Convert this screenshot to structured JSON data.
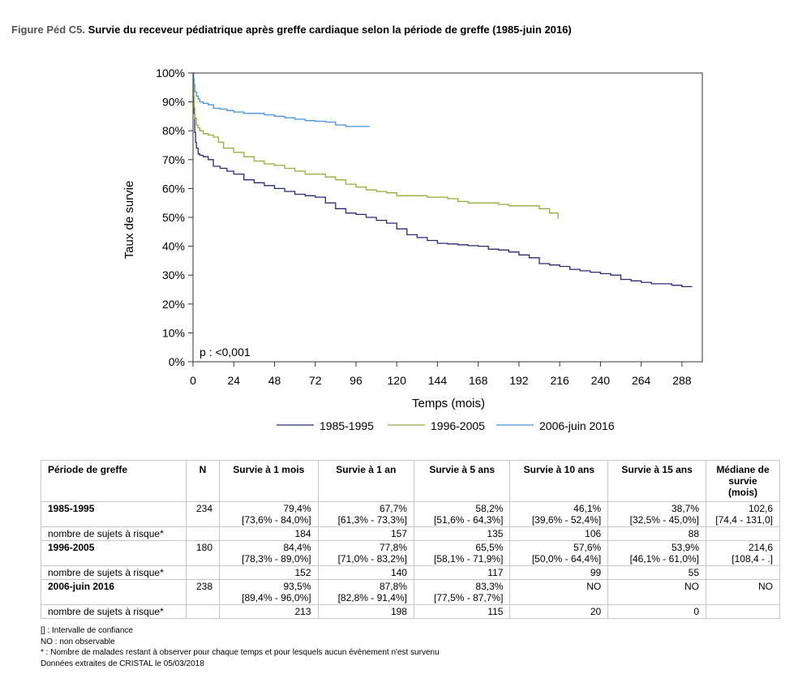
{
  "figure": {
    "label": "Figure Péd C5.",
    "title": "Survie du receveur pédiatrique après greffe cardiaque selon la période de greffe (1985-juin 2016)"
  },
  "chart_data": {
    "type": "line",
    "xlabel": "Temps (mois)",
    "ylabel": "Taux de survie",
    "xlim": [
      0,
      300
    ],
    "ylim": [
      0,
      100
    ],
    "x_ticks": [
      0,
      24,
      48,
      72,
      96,
      120,
      144,
      168,
      192,
      216,
      240,
      264,
      288
    ],
    "x_tick_labels": [
      "0",
      "24",
      "48",
      "72",
      "96",
      "120",
      "144",
      "168",
      "192",
      "216",
      "240",
      "264",
      "288"
    ],
    "y_ticks": [
      0,
      10,
      20,
      30,
      40,
      50,
      60,
      70,
      80,
      90,
      100
    ],
    "y_tick_labels": [
      "0%",
      "10%",
      "20%",
      "30%",
      "40%",
      "50%",
      "60%",
      "70%",
      "80%",
      "90%",
      "100%"
    ],
    "grid": false,
    "legend_position": "bottom",
    "annotation": "p : <0,001",
    "series": [
      {
        "name": "1985-1995",
        "color": "#2a2a6e",
        "x": [
          0,
          0.3,
          0.6,
          1,
          1.5,
          2,
          3,
          4,
          6,
          9,
          12,
          16,
          20,
          24,
          30,
          36,
          42,
          48,
          54,
          60,
          66,
          72,
          78,
          84,
          90,
          96,
          102,
          108,
          114,
          120,
          126,
          132,
          138,
          144,
          150,
          156,
          162,
          168,
          174,
          180,
          186,
          192,
          198,
          204,
          210,
          216,
          222,
          228,
          234,
          240,
          246,
          252,
          258,
          264,
          270,
          276,
          282,
          288,
          294
        ],
        "y": [
          100,
          92,
          86,
          79.4,
          76,
          74,
          72,
          71.5,
          71,
          70,
          67.7,
          67,
          66,
          65,
          63,
          62,
          61,
          60,
          59,
          58,
          57.5,
          57,
          55,
          53,
          51.5,
          51,
          50,
          49,
          48,
          46,
          44,
          43,
          42,
          41,
          40.8,
          40.5,
          40.2,
          40,
          39,
          38.7,
          38,
          37,
          36,
          34,
          33.5,
          33,
          32,
          31.5,
          31,
          30.5,
          30,
          28.5,
          28,
          27.5,
          27,
          27,
          26.5,
          26,
          26
        ]
      },
      {
        "name": "1996-2005",
        "color": "#8fae3a",
        "x": [
          0,
          0.3,
          0.6,
          1,
          2,
          3,
          4,
          6,
          9,
          12,
          15,
          18,
          24,
          30,
          36,
          42,
          48,
          54,
          60,
          66,
          72,
          78,
          84,
          90,
          96,
          102,
          108,
          114,
          120,
          126,
          132,
          138,
          144,
          150,
          156,
          162,
          168,
          174,
          180,
          186,
          192,
          198,
          204,
          210,
          214,
          215
        ],
        "y": [
          100,
          92,
          88,
          84.4,
          82,
          81,
          80,
          79,
          78.5,
          77.8,
          76,
          74,
          72.5,
          71,
          69.5,
          68.5,
          68,
          67,
          66,
          65,
          65,
          64,
          63,
          61.5,
          60.5,
          59.5,
          59,
          58.5,
          57.5,
          57.5,
          57.5,
          57,
          57,
          56.5,
          55.5,
          55,
          55,
          55,
          54.5,
          54,
          54,
          54,
          53,
          51.5,
          51.5,
          49.5
        ]
      },
      {
        "name": "2006-juin 2016",
        "color": "#4a90d9",
        "x": [
          0,
          0.3,
          0.6,
          1,
          2,
          3,
          4,
          6,
          9,
          12,
          16,
          20,
          24,
          30,
          36,
          42,
          48,
          54,
          60,
          66,
          72,
          78,
          84,
          90,
          96,
          102,
          104
        ],
        "y": [
          100,
          98,
          96,
          93.5,
          92,
          91,
          90,
          89.5,
          89,
          87.8,
          87.5,
          87,
          86.5,
          86,
          86,
          85.5,
          85,
          84.5,
          84,
          83.5,
          83.3,
          83,
          82,
          81.5,
          81.5,
          81.5,
          81.5
        ]
      }
    ]
  },
  "table": {
    "headers": [
      "Période de greffe",
      "N",
      "Survie à 1 mois",
      "Survie à 1 an",
      "Survie à 5 ans",
      "Survie à 10 ans",
      "Survie à 15 ans",
      "Médiane de survie (mois)"
    ],
    "groups": [
      {
        "period": "1985-1995",
        "n": "234",
        "values": [
          "79,4%",
          "67,7%",
          "58,2%",
          "46,1%",
          "38,7%",
          "102,6"
        ],
        "ci": [
          "[73,6% - 84,0%]",
          "[61,3% - 73,3%]",
          "[51,6% - 64,3%]",
          "[39,6% - 52,4%]",
          "[32,5% - 45,0%]",
          "[74,4 - 131,0]"
        ],
        "risk_label": "nombre de sujets à risque*",
        "at_risk": [
          "184",
          "157",
          "135",
          "106",
          "88",
          ""
        ]
      },
      {
        "period": "1996-2005",
        "n": "180",
        "values": [
          "84,4%",
          "77,8%",
          "65,5%",
          "57,6%",
          "53,9%",
          "214,6"
        ],
        "ci": [
          "[78,3% - 89,0%]",
          "[71,0% - 83,2%]",
          "[58,1% - 71,9%]",
          "[50,0% - 64,4%]",
          "[46,1% - 61,0%]",
          "[108,4 - .]"
        ],
        "risk_label": "nombre de sujets à risque*",
        "at_risk": [
          "152",
          "140",
          "117",
          "99",
          "55",
          ""
        ]
      },
      {
        "period": "2006-juin 2016",
        "n": "238",
        "values": [
          "93,5%",
          "87,8%",
          "83,3%",
          "NO",
          "NO",
          "NO"
        ],
        "ci": [
          "[89,4% - 96,0%]",
          "[82,8% - 91,4%]",
          "[77,5% - 87,7%]",
          "",
          "",
          ""
        ],
        "risk_label": "nombre de sujets à risque*",
        "at_risk": [
          "213",
          "198",
          "115",
          "20",
          "0",
          ""
        ]
      }
    ]
  },
  "notes": [
    "[] : Intervalle de confiance",
    "NO : non observable",
    "* : Nombre de malades restant à observer pour chaque temps et pour lesquels aucun évènement n'est survenu",
    "Données extraites de CRISTAL le 05/03/2018"
  ]
}
